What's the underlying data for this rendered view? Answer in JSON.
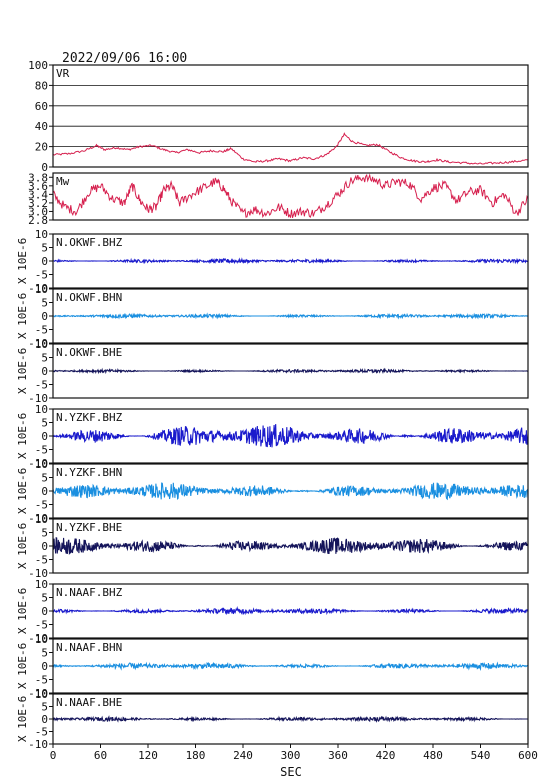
{
  "header": {
    "title": "2022/09/06 16:00"
  },
  "chart_data": {
    "type": "line",
    "title": "2022/09/06 16:00",
    "xlabel": "SEC",
    "xlim": [
      0,
      600
    ],
    "xticks": [
      0,
      60,
      120,
      180,
      240,
      300,
      360,
      420,
      480,
      540,
      600
    ],
    "panels": [
      {
        "label": "VR",
        "color": "#d6204e",
        "ylim": [
          0,
          100
        ],
        "yticks": [
          0,
          20,
          40,
          60,
          80,
          100
        ],
        "grid": true,
        "ylabel": "",
        "series": [
          {
            "x": 0,
            "y": 12
          },
          {
            "x": 20,
            "y": 13
          },
          {
            "x": 40,
            "y": 16
          },
          {
            "x": 55,
            "y": 21
          },
          {
            "x": 65,
            "y": 17
          },
          {
            "x": 80,
            "y": 19
          },
          {
            "x": 95,
            "y": 17
          },
          {
            "x": 110,
            "y": 20
          },
          {
            "x": 125,
            "y": 21
          },
          {
            "x": 140,
            "y": 17
          },
          {
            "x": 155,
            "y": 14
          },
          {
            "x": 170,
            "y": 17
          },
          {
            "x": 185,
            "y": 14
          },
          {
            "x": 200,
            "y": 16
          },
          {
            "x": 215,
            "y": 15
          },
          {
            "x": 225,
            "y": 18
          },
          {
            "x": 240,
            "y": 8
          },
          {
            "x": 255,
            "y": 5
          },
          {
            "x": 270,
            "y": 6
          },
          {
            "x": 285,
            "y": 8
          },
          {
            "x": 300,
            "y": 6
          },
          {
            "x": 315,
            "y": 9
          },
          {
            "x": 330,
            "y": 8
          },
          {
            "x": 345,
            "y": 12
          },
          {
            "x": 358,
            "y": 20
          },
          {
            "x": 368,
            "y": 32
          },
          {
            "x": 378,
            "y": 25
          },
          {
            "x": 395,
            "y": 21
          },
          {
            "x": 410,
            "y": 22
          },
          {
            "x": 425,
            "y": 15
          },
          {
            "x": 440,
            "y": 9
          },
          {
            "x": 455,
            "y": 6
          },
          {
            "x": 470,
            "y": 5
          },
          {
            "x": 485,
            "y": 7
          },
          {
            "x": 500,
            "y": 5
          },
          {
            "x": 520,
            "y": 4
          },
          {
            "x": 540,
            "y": 3
          },
          {
            "x": 560,
            "y": 4
          },
          {
            "x": 580,
            "y": 5
          },
          {
            "x": 600,
            "y": 7
          }
        ]
      },
      {
        "label": "Mw",
        "color": "#d6204e",
        "ylim": [
          2.8,
          3.9
        ],
        "yticks": [
          2.8,
          3.0,
          3.2,
          3.4,
          3.6,
          3.8
        ],
        "grid": false,
        "ylabel": "",
        "series": [
          {
            "x": 0,
            "y": 3.4
          },
          {
            "x": 15,
            "y": 3.1
          },
          {
            "x": 30,
            "y": 3.0
          },
          {
            "x": 45,
            "y": 3.45
          },
          {
            "x": 60,
            "y": 3.6
          },
          {
            "x": 75,
            "y": 3.3
          },
          {
            "x": 90,
            "y": 3.2
          },
          {
            "x": 100,
            "y": 3.6
          },
          {
            "x": 110,
            "y": 3.25
          },
          {
            "x": 120,
            "y": 3.05
          },
          {
            "x": 130,
            "y": 3.1
          },
          {
            "x": 140,
            "y": 3.5
          },
          {
            "x": 150,
            "y": 3.6
          },
          {
            "x": 160,
            "y": 3.2
          },
          {
            "x": 175,
            "y": 3.4
          },
          {
            "x": 190,
            "y": 3.55
          },
          {
            "x": 205,
            "y": 3.7
          },
          {
            "x": 215,
            "y": 3.55
          },
          {
            "x": 225,
            "y": 3.25
          },
          {
            "x": 240,
            "y": 2.95
          },
          {
            "x": 255,
            "y": 3.05
          },
          {
            "x": 270,
            "y": 2.95
          },
          {
            "x": 285,
            "y": 3.1
          },
          {
            "x": 300,
            "y": 2.95
          },
          {
            "x": 315,
            "y": 3.0
          },
          {
            "x": 330,
            "y": 2.95
          },
          {
            "x": 345,
            "y": 3.15
          },
          {
            "x": 360,
            "y": 3.4
          },
          {
            "x": 375,
            "y": 3.7
          },
          {
            "x": 390,
            "y": 3.8
          },
          {
            "x": 405,
            "y": 3.75
          },
          {
            "x": 420,
            "y": 3.6
          },
          {
            "x": 435,
            "y": 3.7
          },
          {
            "x": 450,
            "y": 3.65
          },
          {
            "x": 465,
            "y": 3.3
          },
          {
            "x": 480,
            "y": 3.55
          },
          {
            "x": 495,
            "y": 3.6
          },
          {
            "x": 510,
            "y": 3.25
          },
          {
            "x": 525,
            "y": 3.45
          },
          {
            "x": 540,
            "y": 3.5
          },
          {
            "x": 555,
            "y": 3.2
          },
          {
            "x": 570,
            "y": 3.4
          },
          {
            "x": 585,
            "y": 2.95
          },
          {
            "x": 600,
            "y": 3.3
          }
        ]
      },
      {
        "label": "N.OKWF.BHZ",
        "color": "#1a1acc",
        "ylim": [
          -10,
          10
        ],
        "yticks": [
          -10,
          -5,
          0,
          5,
          10
        ],
        "ylabel": "X 10E-6",
        "amplitude": 0.6
      },
      {
        "label": "N.OKWF.BHN",
        "color": "#1a8fe0",
        "ylim": [
          -10,
          10
        ],
        "yticks": [
          -10,
          -5,
          0,
          5,
          10
        ],
        "ylabel": "X 10E-6",
        "amplitude": 0.6
      },
      {
        "label": "N.OKWF.BHE",
        "color": "#14145a",
        "ylim": [
          -10,
          10
        ],
        "yticks": [
          -10,
          -5,
          0,
          5,
          10
        ],
        "ylabel": "X 10E-6",
        "amplitude": 0.5
      },
      {
        "label": "N.YZKF.BHZ",
        "color": "#1a1acc",
        "ylim": [
          -10,
          10
        ],
        "yticks": [
          -10,
          -5,
          0,
          5,
          10
        ],
        "ylabel": "X 10E-6",
        "amplitude": 3.5
      },
      {
        "label": "N.YZKF.BHN",
        "color": "#1a8fe0",
        "ylim": [
          -10,
          10
        ],
        "yticks": [
          -10,
          -5,
          0,
          5,
          10
        ],
        "ylabel": "X 10E-6",
        "amplitude": 2.5
      },
      {
        "label": "N.YZKF.BHE",
        "color": "#14145a",
        "ylim": [
          -10,
          10
        ],
        "yticks": [
          -10,
          -5,
          0,
          5,
          10
        ],
        "ylabel": "X 10E-6",
        "amplitude": 2.5
      },
      {
        "label": "N.NAAF.BHZ",
        "color": "#1a1acc",
        "ylim": [
          -10,
          10
        ],
        "yticks": [
          -10,
          -5,
          0,
          5,
          10
        ],
        "ylabel": "X 10E-6",
        "amplitude": 0.9
      },
      {
        "label": "N.NAAF.BHN",
        "color": "#1a8fe0",
        "ylim": [
          -10,
          10
        ],
        "yticks": [
          -10,
          -5,
          0,
          5,
          10
        ],
        "ylabel": "X 10E-6",
        "amplitude": 0.9
      },
      {
        "label": "N.NAAF.BHE",
        "color": "#14145a",
        "ylim": [
          -10,
          10
        ],
        "yticks": [
          -10,
          -5,
          0,
          5,
          10
        ],
        "ylabel": "X 10E-6",
        "amplitude": 0.7
      }
    ]
  }
}
